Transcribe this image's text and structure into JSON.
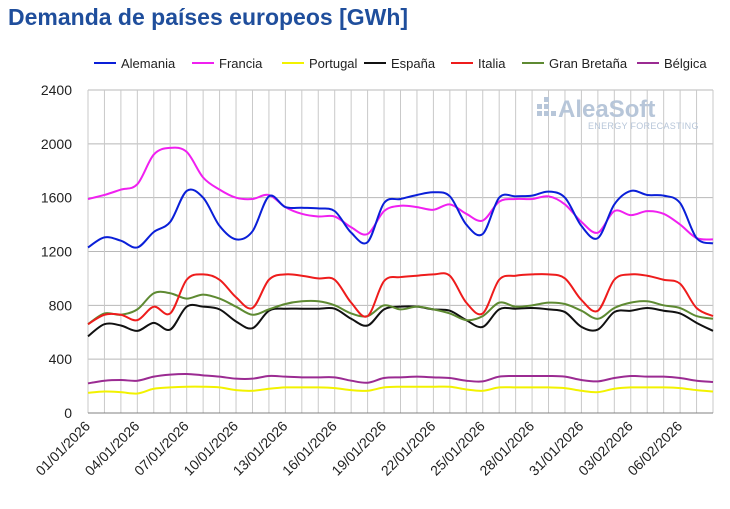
{
  "title": "Demanda de países europeos [GWh]",
  "watermark": {
    "brand": "AleaSoft",
    "tagline": "ENERGY FORECASTING"
  },
  "chart_data": {
    "type": "line",
    "title": "Demanda de países europeos [GWh]",
    "xlabel": "",
    "ylabel": "",
    "ylim": [
      0,
      2400
    ],
    "yticks": [
      0,
      400,
      800,
      1200,
      1600,
      2000,
      2400
    ],
    "grid": true,
    "legend_position": "top",
    "x": [
      "01/01/2026",
      "02/01/2026",
      "03/01/2026",
      "04/01/2026",
      "05/01/2026",
      "06/01/2026",
      "07/01/2026",
      "08/01/2026",
      "09/01/2026",
      "10/01/2026",
      "11/01/2026",
      "12/01/2026",
      "13/01/2026",
      "14/01/2026",
      "15/01/2026",
      "16/01/2026",
      "17/01/2026",
      "18/01/2026",
      "19/01/2026",
      "20/01/2026",
      "21/01/2026",
      "22/01/2026",
      "23/01/2026",
      "24/01/2026",
      "25/01/2026",
      "26/01/2026",
      "27/01/2026",
      "28/01/2026",
      "29/01/2026",
      "30/01/2026",
      "31/01/2026",
      "01/02/2026",
      "02/02/2026",
      "03/02/2026",
      "04/02/2026",
      "05/02/2026",
      "06/02/2026",
      "07/02/2026",
      "08/02/2026"
    ],
    "xtick_labels": [
      "01/01/2026",
      "04/01/2026",
      "07/01/2026",
      "10/01/2026",
      "13/01/2026",
      "16/01/2026",
      "19/01/2026",
      "22/01/2026",
      "25/01/2026",
      "28/01/2026",
      "31/01/2026",
      "03/02/2026",
      "06/02/2026"
    ],
    "series": [
      {
        "name": "Alemania",
        "color": "#0a1fd8",
        "values": [
          1230,
          1305,
          1280,
          1230,
          1345,
          1420,
          1650,
          1600,
          1390,
          1290,
          1350,
          1610,
          1530,
          1525,
          1520,
          1500,
          1340,
          1270,
          1560,
          1590,
          1620,
          1640,
          1610,
          1400,
          1330,
          1600,
          1610,
          1615,
          1645,
          1600,
          1390,
          1300,
          1550,
          1650,
          1620,
          1615,
          1560,
          1300,
          1260
        ]
      },
      {
        "name": "Francia",
        "color": "#f020f0",
        "values": [
          1590,
          1620,
          1660,
          1700,
          1920,
          1970,
          1940,
          1750,
          1660,
          1600,
          1590,
          1620,
          1530,
          1480,
          1460,
          1460,
          1380,
          1330,
          1500,
          1540,
          1530,
          1510,
          1550,
          1480,
          1430,
          1570,
          1590,
          1590,
          1610,
          1550,
          1420,
          1340,
          1500,
          1470,
          1500,
          1480,
          1400,
          1300,
          1290
        ]
      },
      {
        "name": "Portugal",
        "color": "#f2f200",
        "values": [
          150,
          160,
          155,
          145,
          180,
          190,
          195,
          195,
          190,
          170,
          165,
          180,
          190,
          190,
          190,
          185,
          170,
          165,
          190,
          195,
          195,
          195,
          195,
          175,
          165,
          190,
          190,
          190,
          190,
          185,
          165,
          155,
          180,
          190,
          190,
          190,
          185,
          170,
          160
        ]
      },
      {
        "name": "España",
        "color": "#111111",
        "values": [
          570,
          660,
          650,
          610,
          670,
          620,
          790,
          790,
          770,
          680,
          630,
          760,
          775,
          775,
          775,
          775,
          700,
          650,
          770,
          790,
          790,
          770,
          760,
          690,
          640,
          770,
          775,
          780,
          770,
          750,
          640,
          620,
          750,
          760,
          780,
          760,
          740,
          670,
          610
        ]
      },
      {
        "name": "Italia",
        "color": "#ee1c1c",
        "values": [
          660,
          730,
          730,
          690,
          790,
          740,
          990,
          1030,
          990,
          860,
          780,
          990,
          1030,
          1020,
          1000,
          990,
          820,
          720,
          980,
          1010,
          1020,
          1030,
          1020,
          820,
          740,
          990,
          1020,
          1030,
          1030,
          1000,
          840,
          760,
          990,
          1030,
          1020,
          990,
          960,
          780,
          720
        ]
      },
      {
        "name": "Gran Bretaña",
        "color": "#5e8a32",
        "values": [
          660,
          740,
          730,
          770,
          890,
          890,
          850,
          880,
          850,
          790,
          730,
          770,
          810,
          830,
          830,
          800,
          740,
          720,
          800,
          770,
          790,
          770,
          740,
          690,
          720,
          820,
          790,
          800,
          820,
          810,
          760,
          700,
          780,
          820,
          830,
          800,
          780,
          720,
          700
        ]
      },
      {
        "name": "Bélgica",
        "color": "#9b2b92",
        "values": [
          220,
          240,
          245,
          240,
          270,
          285,
          290,
          280,
          270,
          255,
          255,
          275,
          270,
          265,
          265,
          265,
          240,
          225,
          260,
          265,
          270,
          265,
          260,
          240,
          235,
          270,
          275,
          275,
          275,
          270,
          245,
          235,
          260,
          275,
          270,
          270,
          260,
          240,
          230
        ]
      }
    ]
  }
}
